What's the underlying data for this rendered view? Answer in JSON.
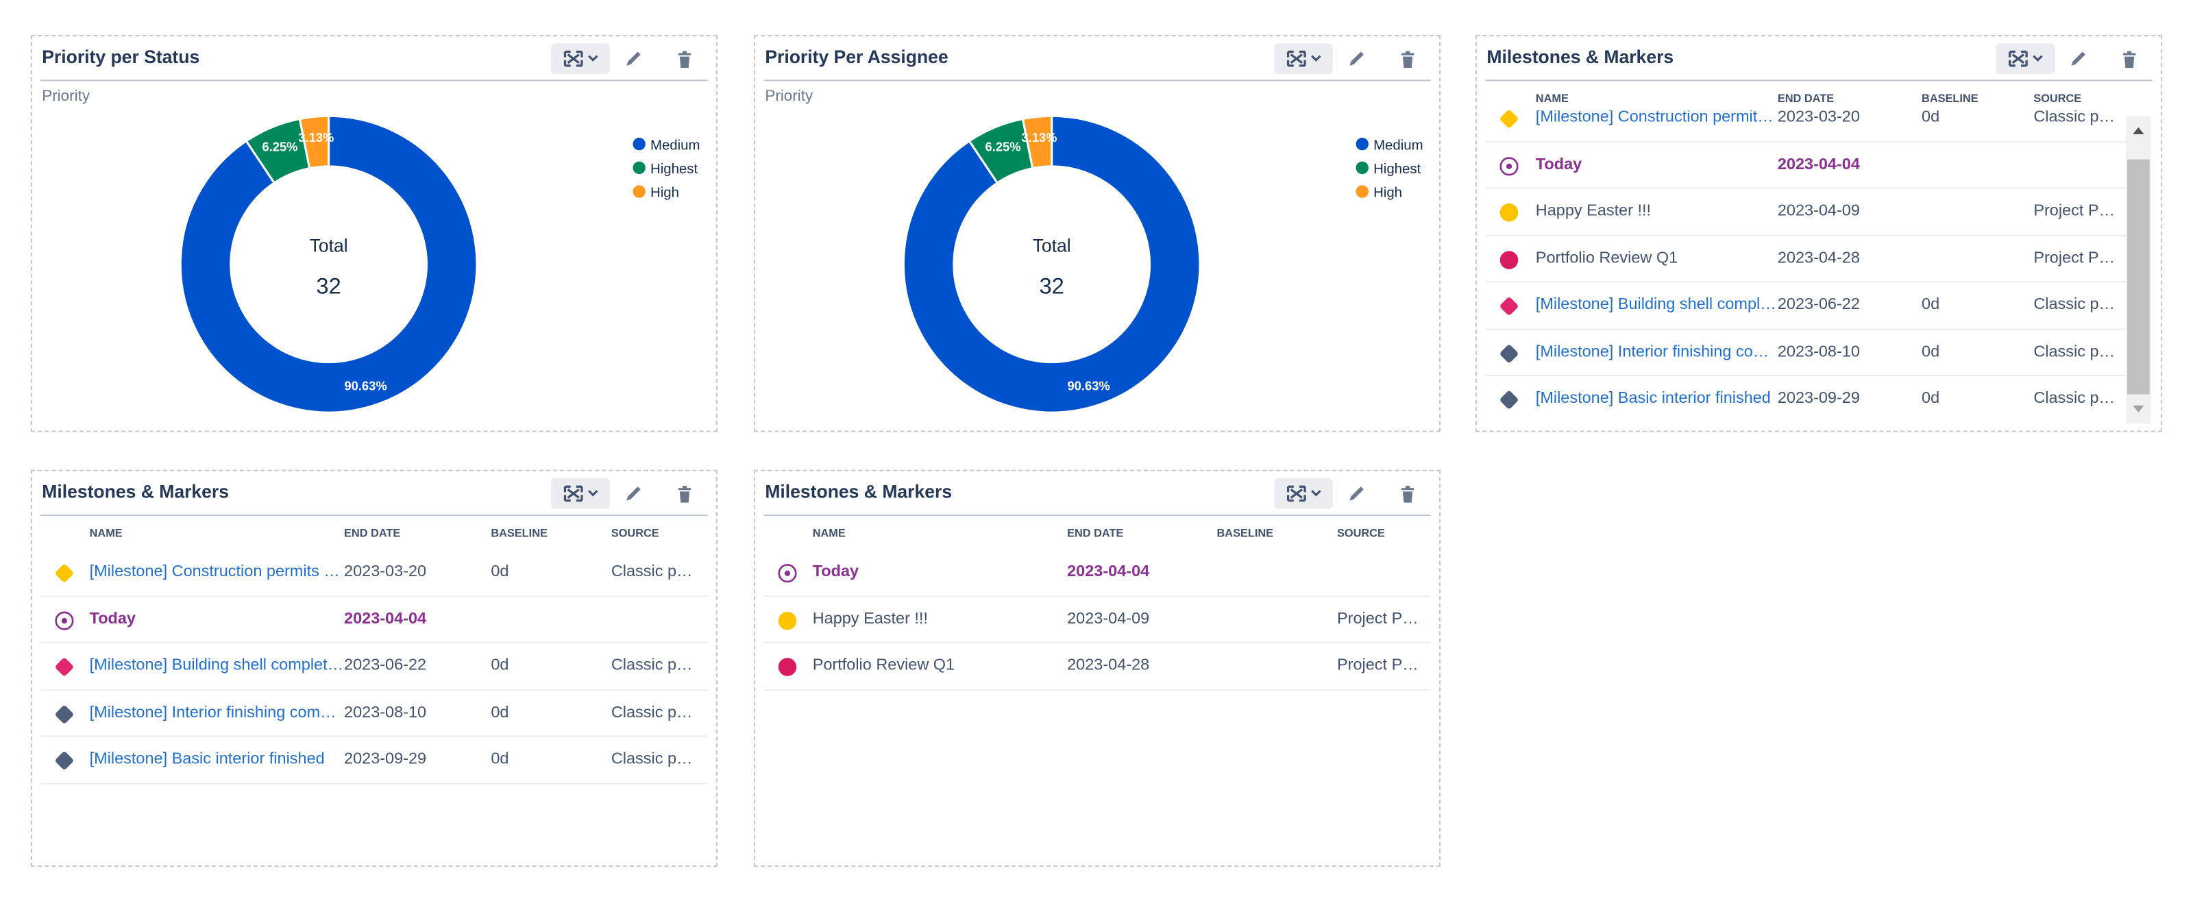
{
  "widgets": [
    {
      "title": "Priority per Status",
      "chart": {
        "type": "pie",
        "subtitle": "Priority",
        "categories": [
          "Medium",
          "Highest",
          "High"
        ],
        "values": [
          90.63,
          6.25,
          3.13
        ],
        "value_labels": [
          "90.63%",
          "6.25%",
          "3.13%"
        ],
        "colors": [
          "#0052cc",
          "#00875a",
          "#ff991f"
        ],
        "center_label": "Total",
        "center_value": 32
      }
    },
    {
      "title": "Priority Per Assignee",
      "chart": {
        "type": "pie",
        "subtitle": "Priority",
        "categories": [
          "Medium",
          "Highest",
          "High"
        ],
        "values": [
          90.63,
          6.25,
          3.13
        ],
        "value_labels": [
          "90.63%",
          "6.25%",
          "3.13%"
        ],
        "colors": [
          "#0052cc",
          "#00875a",
          "#ff991f"
        ],
        "center_label": "Total",
        "center_value": 32
      }
    },
    {
      "title": "Milestones & Markers",
      "table": {
        "columns": [
          "NAME",
          "END DATE",
          "BASELINE",
          "SOURCE"
        ],
        "rows": [
          {
            "icon": "diamond",
            "color": "#ffc400",
            "style": "link",
            "cells": [
              "[Milestone] Construction permit…",
              "2023-03-20",
              "0d",
              "Classic p…"
            ]
          },
          {
            "icon": "target",
            "color": "#8b2f93",
            "style": "today",
            "cells": [
              "Today",
              "2023-04-04",
              null,
              null
            ]
          },
          {
            "icon": "circle",
            "color": "#ffc400",
            "style": "plain",
            "cells": [
              "Happy Easter !!!",
              "2023-04-09",
              null,
              "Project P…"
            ]
          },
          {
            "icon": "circle",
            "color": "#d81b60",
            "style": "plain",
            "cells": [
              "Portfolio Review Q1",
              "2023-04-28",
              null,
              "Project P…"
            ]
          },
          {
            "icon": "diamond",
            "color": "#e0266e",
            "style": "link",
            "cells": [
              "[Milestone] Building shell compl…",
              "2023-06-22",
              "0d",
              "Classic p…"
            ]
          },
          {
            "icon": "diamond",
            "color": "#505f79",
            "style": "link",
            "cells": [
              "[Milestone] Interior finishing co…",
              "2023-08-10",
              "0d",
              "Classic p…"
            ]
          },
          {
            "icon": "diamond",
            "color": "#505f79",
            "style": "link",
            "cells": [
              "[Milestone] Basic interior finished",
              "2023-09-29",
              "0d",
              "Classic p…"
            ]
          }
        ]
      }
    },
    {
      "title": "Milestones & Markers",
      "table": {
        "columns": [
          "NAME",
          "END DATE",
          "BASELINE",
          "SOURCE"
        ],
        "rows": [
          {
            "icon": "diamond",
            "color": "#ffc400",
            "style": "link",
            "cells": [
              "[Milestone] Construction permits …",
              "2023-03-20",
              "0d",
              "Classic p…"
            ]
          },
          {
            "icon": "target",
            "color": "#8b2f93",
            "style": "today",
            "cells": [
              "Today",
              "2023-04-04",
              null,
              null
            ]
          },
          {
            "icon": "diamond",
            "color": "#e0266e",
            "style": "link",
            "cells": [
              "[Milestone] Building shell complet…",
              "2023-06-22",
              "0d",
              "Classic p…"
            ]
          },
          {
            "icon": "diamond",
            "color": "#505f79",
            "style": "link",
            "cells": [
              "[Milestone] Interior finishing com…",
              "2023-08-10",
              "0d",
              "Classic p…"
            ]
          },
          {
            "icon": "diamond",
            "color": "#505f79",
            "style": "link",
            "cells": [
              "[Milestone] Basic interior finished",
              "2023-09-29",
              "0d",
              "Classic p…"
            ]
          }
        ]
      }
    },
    {
      "title": "Milestones & Markers",
      "table": {
        "columns": [
          "NAME",
          "END DATE",
          "BASELINE",
          "SOURCE"
        ],
        "rows": [
          {
            "icon": "target",
            "color": "#8b2f93",
            "style": "today",
            "cells": [
              "Today",
              "2023-04-04",
              null,
              null
            ]
          },
          {
            "icon": "circle",
            "color": "#ffc400",
            "style": "plain",
            "cells": [
              "Happy Easter !!!",
              "2023-04-09",
              null,
              "Project P…"
            ]
          },
          {
            "icon": "circle",
            "color": "#d81b60",
            "style": "plain",
            "cells": [
              "Portfolio Review Q1",
              "2023-04-28",
              null,
              "Project P…"
            ]
          }
        ]
      }
    }
  ]
}
